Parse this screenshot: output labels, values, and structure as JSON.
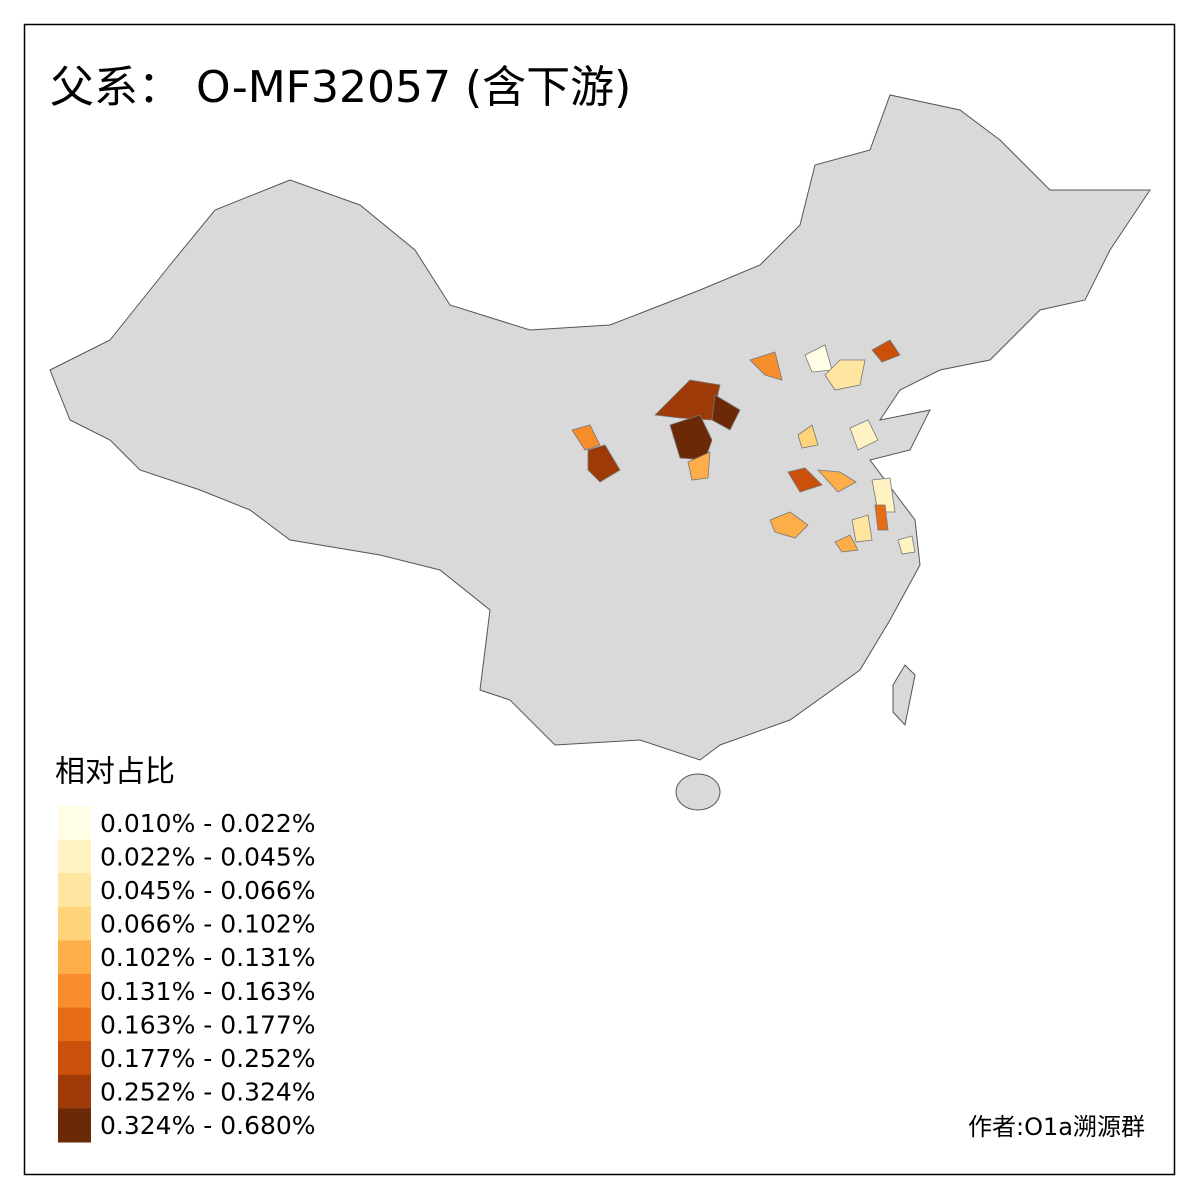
{
  "title": "父系： O-MF32057 (含下游)",
  "legend": {
    "title": "相对占比",
    "items": [
      {
        "label": "0.010% - 0.022%",
        "color": "#fffde6"
      },
      {
        "label": "0.022% - 0.045%",
        "color": "#fff3c4"
      },
      {
        "label": "0.045% - 0.066%",
        "color": "#fee6a0"
      },
      {
        "label": "0.066% - 0.102%",
        "color": "#fed37a"
      },
      {
        "label": "0.102% - 0.131%",
        "color": "#feae48"
      },
      {
        "label": "0.131% - 0.163%",
        "color": "#f88d2c"
      },
      {
        "label": "0.163% - 0.177%",
        "color": "#e66d16"
      },
      {
        "label": "0.177% - 0.252%",
        "color": "#ca500b"
      },
      {
        "label": "0.252% - 0.324%",
        "color": "#9e3a07"
      },
      {
        "label": "0.324% - 0.680%",
        "color": "#6c2908"
      }
    ]
  },
  "credit": "作者:O1a溯源群"
}
